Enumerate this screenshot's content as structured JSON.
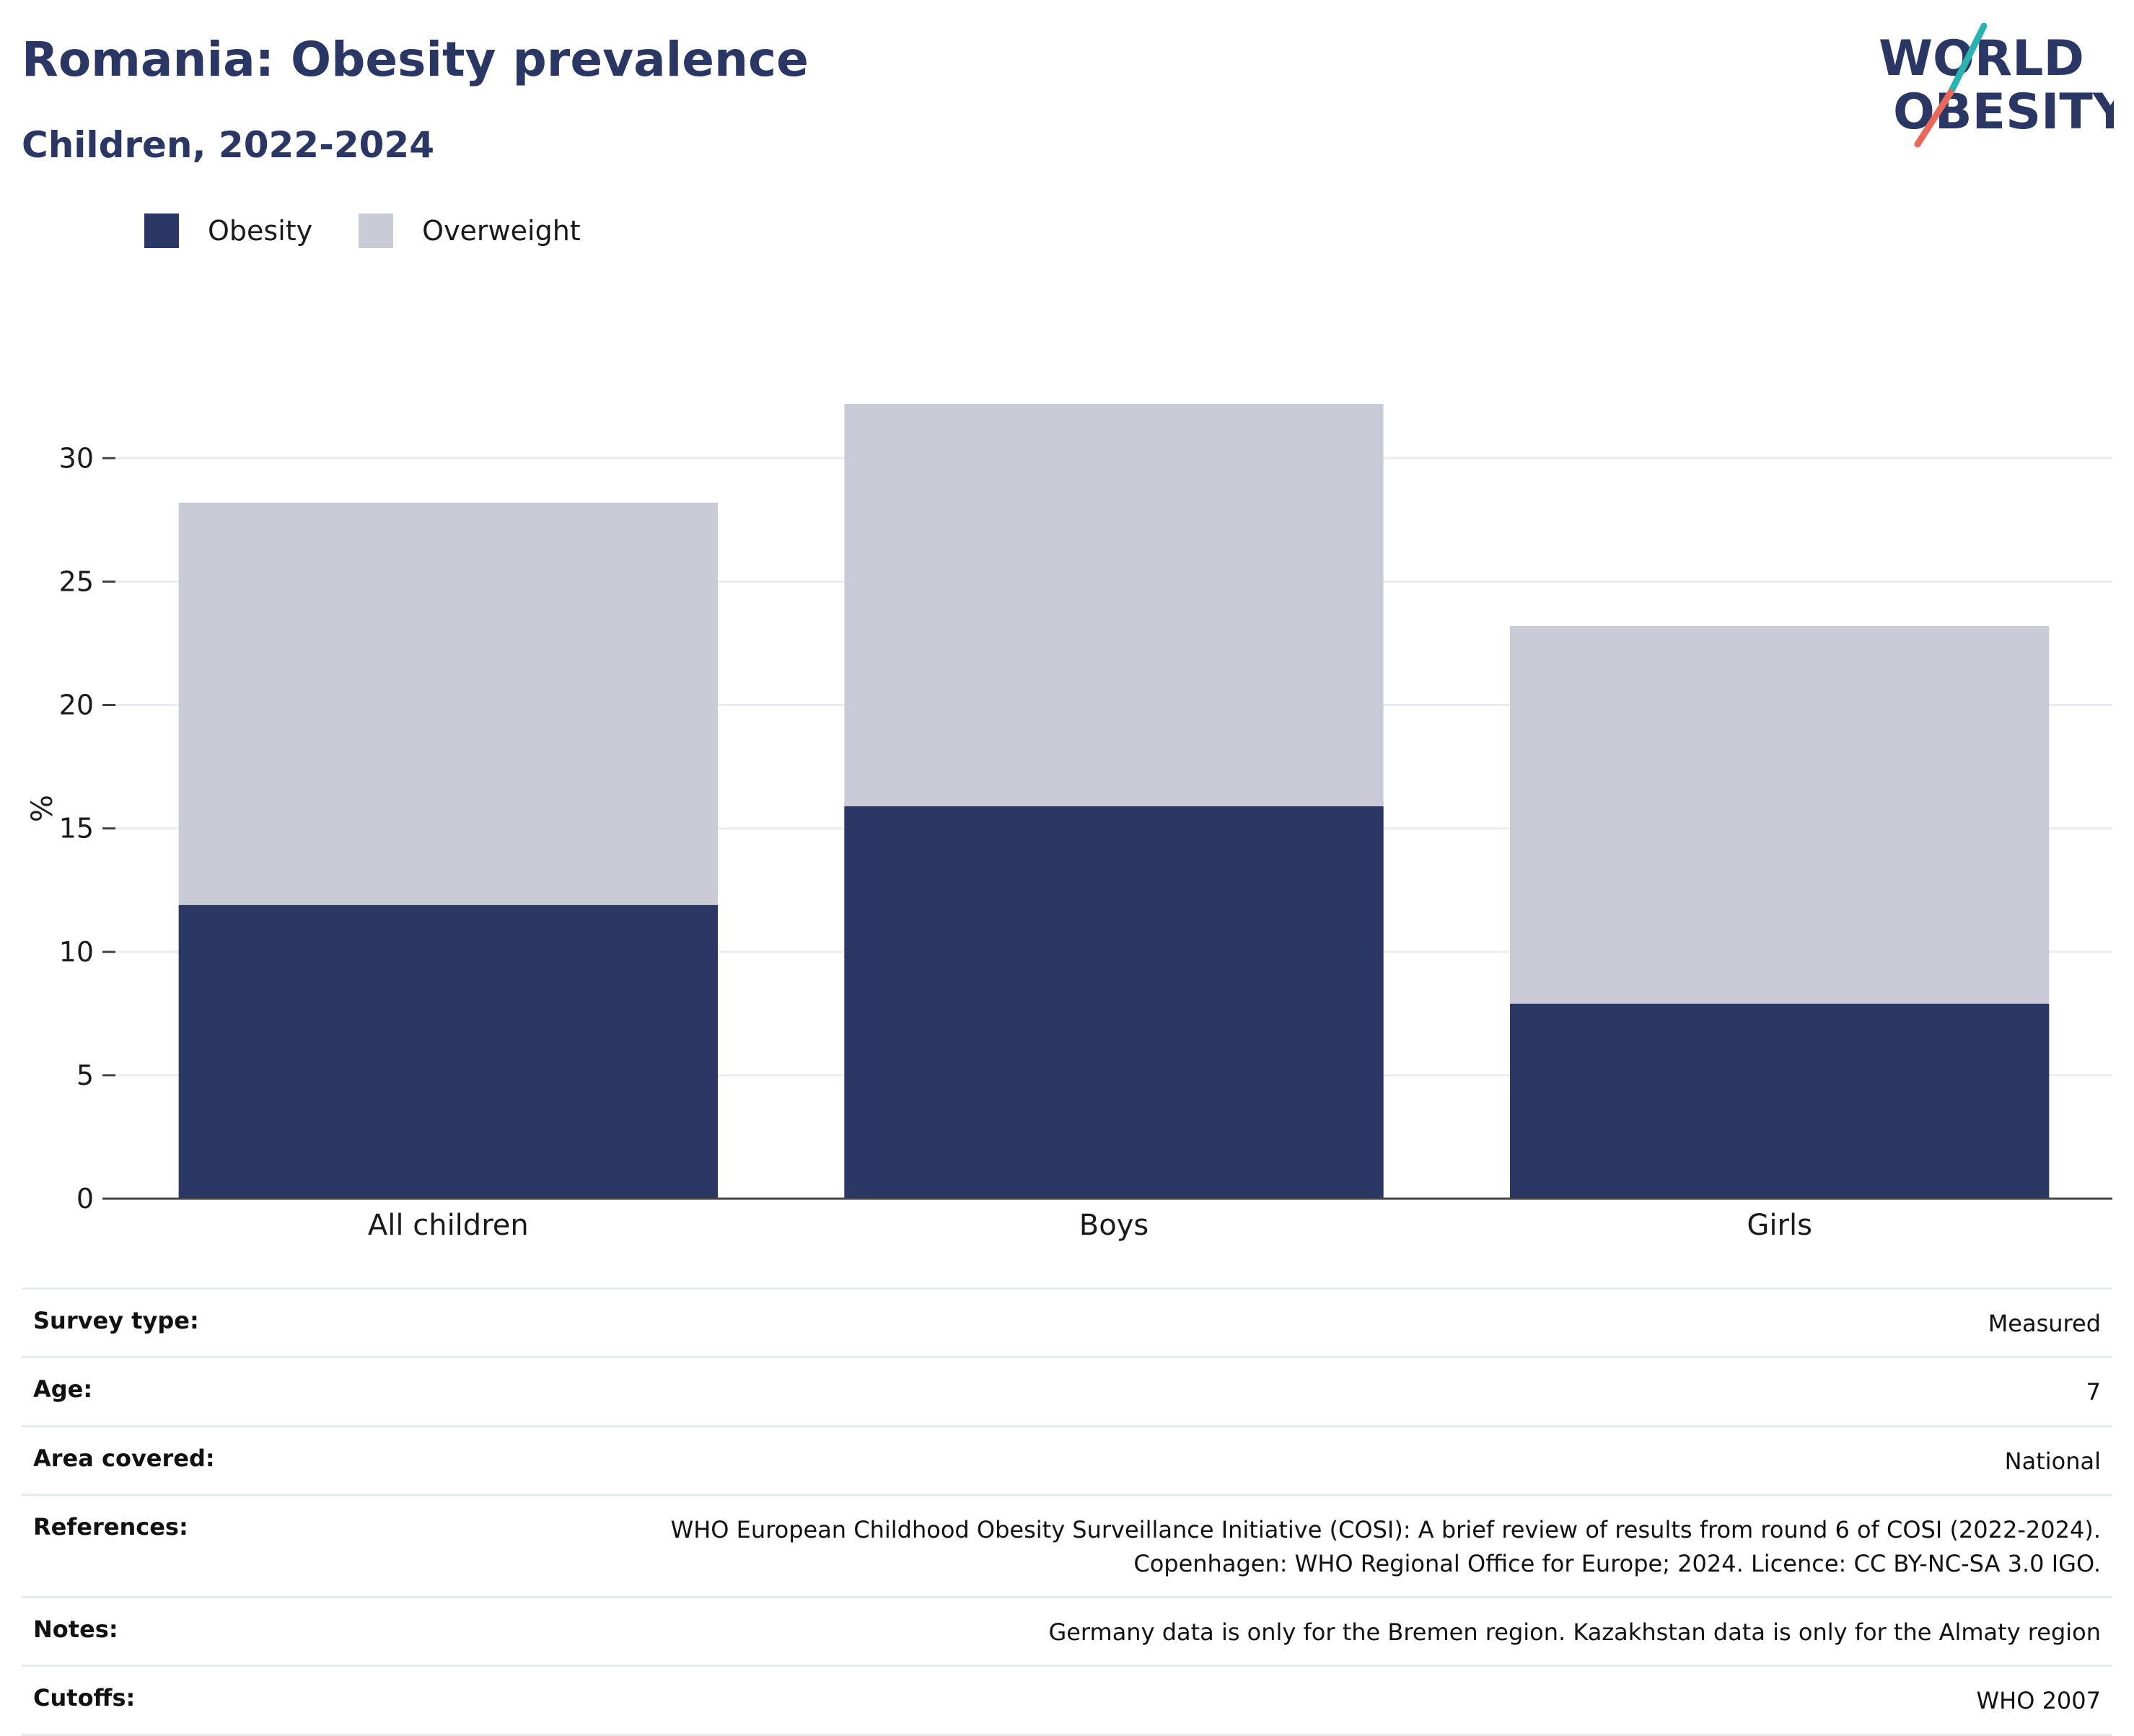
{
  "header": {
    "title": "Romania: Obesity prevalence",
    "subtitle": "Children, 2022-2024"
  },
  "logo": {
    "line1": "WORLD",
    "line2": "OBESITY",
    "colors": {
      "text": "#2a3663",
      "slash_top": "#2bb3b1",
      "slash_bottom": "#e8685a"
    }
  },
  "legend": {
    "items": [
      {
        "label": "Obesity",
        "color": "#2a3663"
      },
      {
        "label": "Overweight",
        "color": "#cacbd7"
      }
    ]
  },
  "chart_data": {
    "type": "bar",
    "stacked": true,
    "categories": [
      "All children",
      "Boys",
      "Girls"
    ],
    "series": [
      {
        "name": "Obesity",
        "values": [
          11.9,
          15.9,
          7.9
        ],
        "color": "#2a3663"
      },
      {
        "name": "Overweight",
        "values": [
          16.3,
          16.3,
          15.3
        ],
        "color": "#cacbd7"
      }
    ],
    "ylabel": "%",
    "yticks": [
      0,
      5,
      10,
      15,
      20,
      25,
      30
    ],
    "ylim": [
      0,
      32.2
    ],
    "grid": true,
    "legend_position": "top-left"
  },
  "meta": {
    "rows": [
      {
        "label": "Survey type:",
        "value": "Measured"
      },
      {
        "label": "Age:",
        "value": "7"
      },
      {
        "label": "Area covered:",
        "value": "National"
      },
      {
        "label": "References:",
        "value": "WHO European Childhood Obesity Surveillance Initiative (COSI): A brief review of results from round 6 of COSI (2022-2024).\nCopenhagen: WHO Regional Office for Europe; 2024. Licence: CC BY-NC-SA 3.0 IGO."
      },
      {
        "label": "Notes:",
        "value": "Germany data is only for the Bremen region. Kazakhstan data is only for the Almaty region"
      },
      {
        "label": "Cutoffs:",
        "value": "WHO 2007"
      }
    ]
  }
}
